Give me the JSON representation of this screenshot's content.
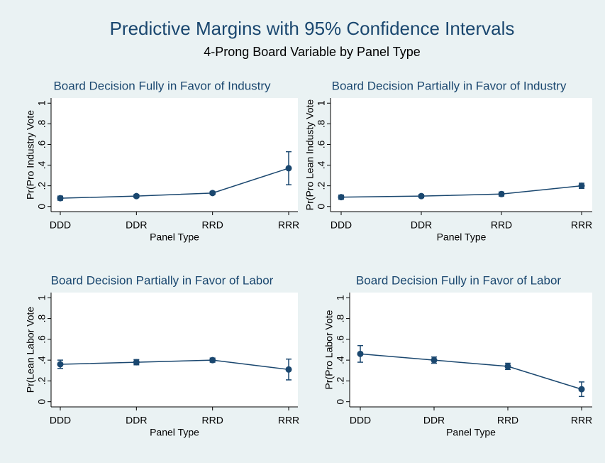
{
  "title": "Predictive Margins with 95% Confidence Intervals",
  "subtitle": "4-Prong Board Variable by Panel Type",
  "chart_data": [
    {
      "type": "line",
      "title": "Board Decision Fully in Favor of Industry",
      "xlabel": "Panel Type",
      "ylabel": "Pr(Pro Industry Vote",
      "categories": [
        "DDD",
        "DDR",
        "RRD",
        "RRR"
      ],
      "values": [
        0.08,
        0.1,
        0.13,
        0.37
      ],
      "errors": [
        0.02,
        0.015,
        0.015,
        0.16
      ],
      "color": "#1a476f",
      "ylim": [
        -0.05,
        1.05
      ],
      "yticks": [
        0,
        {
          "value": 0.2,
          "label": ".2"
        },
        {
          "value": 0.4,
          "label": ".4"
        },
        {
          "value": 0.6,
          "label": ".6"
        },
        {
          "value": 0.8,
          "label": ".8"
        },
        1
      ],
      "grid": false
    },
    {
      "type": "line",
      "title": "Board Decision Partially in Favor of Industry",
      "xlabel": "Panel Type",
      "ylabel": "Pr(Pro Lean Industy Vote",
      "categories": [
        "DDD",
        "DDR",
        "RRD",
        "RRR"
      ],
      "values": [
        0.09,
        0.1,
        0.12,
        0.2
      ],
      "errors": [
        0.02,
        0.015,
        0.02,
        0.025
      ],
      "color": "#1a476f",
      "ylim": [
        -0.05,
        1.05
      ],
      "yticks": [
        0,
        {
          "value": 0.2,
          "label": ".2"
        },
        {
          "value": 0.4,
          "label": ".4"
        },
        {
          "value": 0.6,
          "label": ".6"
        },
        {
          "value": 0.8,
          "label": ".8"
        },
        1
      ],
      "grid": false
    },
    {
      "type": "line",
      "title": "Board Decision Partially in Favor of Labor",
      "xlabel": "Panel Type",
      "ylabel": "Pr(Lean Labor Vote",
      "categories": [
        "DDD",
        "DDR",
        "RRD",
        "RRR"
      ],
      "values": [
        0.36,
        0.38,
        0.4,
        0.31
      ],
      "errors": [
        0.04,
        0.025,
        0.02,
        0.1
      ],
      "color": "#1a476f",
      "ylim": [
        -0.05,
        1.05
      ],
      "yticks": [
        0,
        {
          "value": 0.2,
          "label": ".2"
        },
        {
          "value": 0.4,
          "label": ".4"
        },
        {
          "value": 0.6,
          "label": ".6"
        },
        {
          "value": 0.8,
          "label": ".8"
        },
        1
      ],
      "grid": false
    },
    {
      "type": "line",
      "title": "Board Decision Fully in Favor of Labor",
      "xlabel": "Panel Type",
      "ylabel": "Pr(Pro Labor Vote",
      "categories": [
        "DDD",
        "DDR",
        "RRD",
        "RRR"
      ],
      "values": [
        0.46,
        0.4,
        0.34,
        0.12
      ],
      "errors": [
        0.08,
        0.03,
        0.03,
        0.07
      ],
      "color": "#1a476f",
      "ylim": [
        -0.05,
        1.05
      ],
      "yticks": [
        0,
        {
          "value": 0.2,
          "label": ".2"
        },
        {
          "value": 0.4,
          "label": ".4"
        },
        {
          "value": 0.6,
          "label": ".6"
        },
        {
          "value": 0.8,
          "label": ".8"
        },
        1
      ],
      "grid": false
    }
  ]
}
